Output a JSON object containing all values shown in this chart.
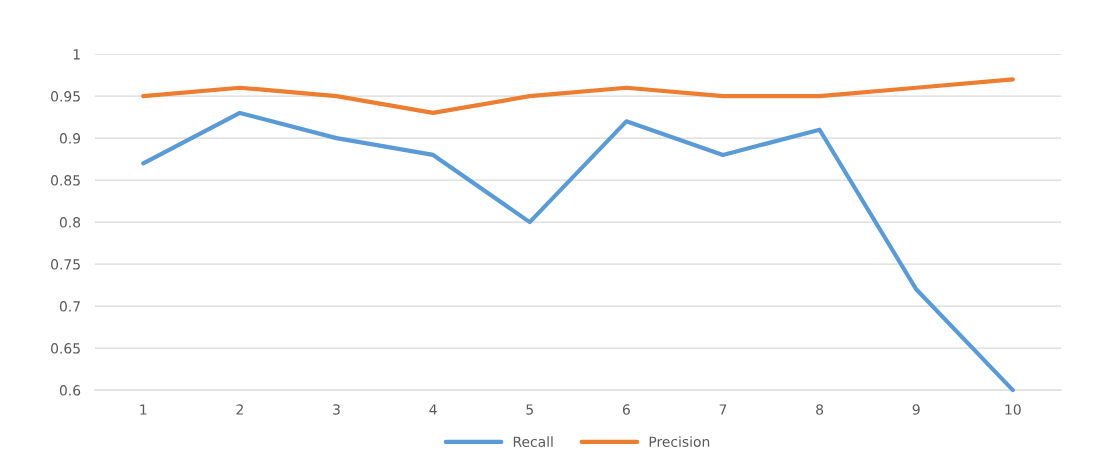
{
  "chart_data": {
    "type": "line",
    "categories": [
      "1",
      "2",
      "3",
      "4",
      "5",
      "6",
      "7",
      "8",
      "9",
      "10"
    ],
    "series": [
      {
        "name": "Recall",
        "color": "#5b9bd5",
        "values": [
          0.87,
          0.93,
          0.9,
          0.88,
          0.8,
          0.92,
          0.88,
          0.91,
          0.72,
          0.6
        ]
      },
      {
        "name": "Precision",
        "color": "#ed7d31",
        "values": [
          0.95,
          0.96,
          0.95,
          0.93,
          0.95,
          0.96,
          0.95,
          0.95,
          0.96,
          0.97
        ]
      }
    ],
    "ylim": [
      0.6,
      1
    ],
    "yticks": [
      0.6,
      0.65,
      0.7,
      0.75,
      0.8,
      0.85,
      0.9,
      0.95,
      1
    ],
    "grid": "y",
    "legend": "bottom",
    "marker": "none",
    "line_style": "solid"
  }
}
